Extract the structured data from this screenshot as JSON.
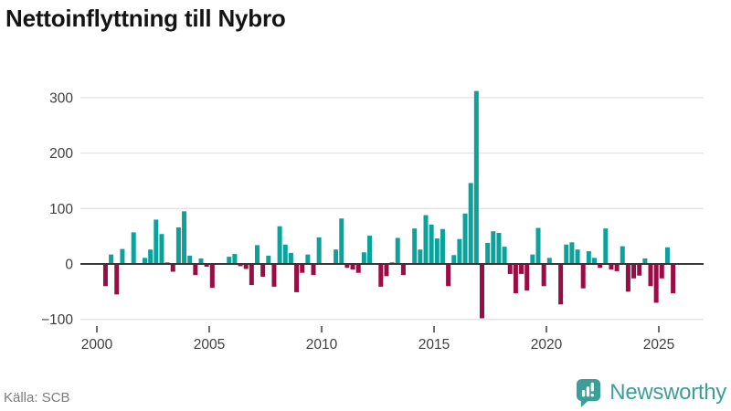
{
  "title": "Nettoinflyttning till Nybro",
  "source": "Källa: SCB",
  "brand": {
    "name": "Newsworthy",
    "color": "#3d9e98"
  },
  "chart_data": {
    "type": "bar",
    "title": "Nettoinflyttning till Nybro",
    "x_start": "2000-Q1",
    "frequency": "quarterly",
    "x_ticks": [
      2000,
      2005,
      2010,
      2015,
      2020,
      2025
    ],
    "y_ticks": [
      -100,
      0,
      100,
      200,
      300
    ],
    "ylim": [
      -110,
      330
    ],
    "grid": "horizontal",
    "legend": "none",
    "colors": {
      "positive": "#0ba29c",
      "negative": "#9a0c44"
    },
    "values": [
      0,
      -40,
      17,
      -55,
      27,
      0,
      57,
      0,
      11,
      26,
      80,
      54,
      3,
      -14,
      66,
      95,
      15,
      -20,
      10,
      -5,
      -43,
      0,
      0,
      13,
      18,
      -4,
      -9,
      -38,
      34,
      -23,
      15,
      -41,
      68,
      35,
      20,
      -51,
      -16,
      17,
      -20,
      48,
      0,
      0,
      26,
      82,
      -7,
      -10,
      -16,
      21,
      51,
      0,
      -41,
      -22,
      3,
      47,
      -20,
      0,
      64,
      26,
      88,
      71,
      46,
      63,
      -40,
      16,
      45,
      91,
      146,
      312,
      -98,
      38,
      59,
      56,
      31,
      -18,
      -53,
      -18,
      -48,
      17,
      65,
      -40,
      11,
      0,
      -73,
      35,
      39,
      26,
      -44,
      23,
      11,
      -7,
      64,
      -10,
      -13,
      32,
      -50,
      -26,
      -21,
      10,
      -40,
      -70,
      -26,
      30,
      -53
    ]
  }
}
